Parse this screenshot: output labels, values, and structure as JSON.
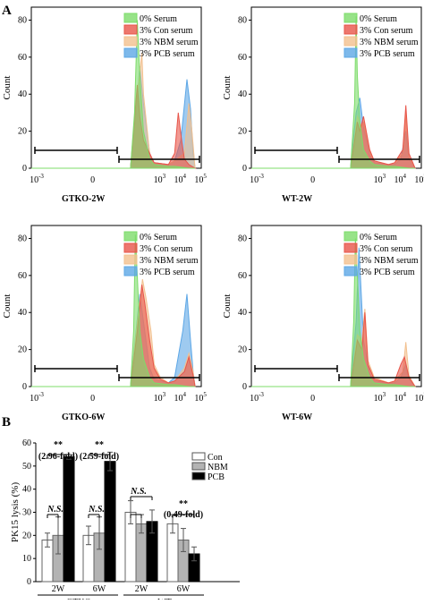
{
  "panel_a_label": "A",
  "panel_b_label": "B",
  "histograms": {
    "y_label": "Count",
    "y_ticks": [
      "0",
      "20",
      "40",
      "60",
      "80"
    ],
    "legend": [
      {
        "label": "0% Serum",
        "color": "#7ddc6a"
      },
      {
        "label": "3% Con serum",
        "color": "#e8554a"
      },
      {
        "label": "3% NBM serum",
        "color": "#f2c08f"
      },
      {
        "label": "3% PCB serum",
        "color": "#5da7e6"
      }
    ]
  },
  "bar_legend": [
    {
      "label": "Con",
      "color": "#ffffff"
    },
    {
      "label": "NBM",
      "color": "#b3b3b3"
    },
    {
      "label": "PCB",
      "color": "#000000"
    }
  ],
  "chart_data": [
    {
      "type": "area",
      "title": "GTKO-2W",
      "ylabel": "Count",
      "ylim": [
        0,
        87
      ],
      "x_scale": "log",
      "xlim": [
        0.001,
        200000
      ],
      "series": [
        {
          "name": "0% Serum",
          "x": [
            0.001,
            70,
            110,
            150,
            200,
            300,
            600,
            1000,
            5000,
            10000,
            50000,
            100000
          ],
          "values": [
            0,
            0,
            30,
            80,
            50,
            20,
            5,
            2,
            1,
            1,
            0,
            0
          ]
        },
        {
          "name": "3% Con serum",
          "x": [
            0.001,
            70,
            150,
            200,
            300,
            600,
            1000,
            5000,
            10000,
            15000,
            22000,
            30000,
            50000,
            100000
          ],
          "values": [
            0,
            0,
            45,
            28,
            15,
            8,
            3,
            2,
            8,
            30,
            15,
            5,
            2,
            0
          ]
        },
        {
          "name": "3% NBM serum",
          "x": [
            0.001,
            70,
            150,
            250,
            300,
            600,
            1000,
            5000,
            10000,
            30000,
            50000,
            70000,
            100000
          ],
          "values": [
            0,
            0,
            40,
            62,
            40,
            8,
            3,
            2,
            4,
            8,
            35,
            20,
            0
          ]
        },
        {
          "name": "3% PCB serum",
          "x": [
            0.001,
            70,
            130,
            200,
            300,
            600,
            1000,
            5000,
            10000,
            20000,
            40000,
            60000,
            80000,
            100000
          ],
          "values": [
            0,
            0,
            30,
            55,
            35,
            8,
            3,
            2,
            4,
            15,
            48,
            32,
            8,
            0
          ]
        }
      ]
    },
    {
      "type": "area",
      "title": "WT-2W",
      "ylabel": "Count",
      "ylim": [
        0,
        87
      ],
      "x_scale": "log",
      "xlim": [
        0.001,
        200000
      ],
      "series": [
        {
          "name": "0% Serum",
          "x": [
            0.001,
            70,
            110,
            130,
            150,
            200,
            300,
            600,
            1000,
            5000,
            10000,
            50000,
            100000
          ],
          "values": [
            0,
            0,
            35,
            82,
            50,
            25,
            10,
            4,
            2,
            1,
            1,
            0,
            0
          ]
        },
        {
          "name": "3% Con serum",
          "x": [
            0.001,
            70,
            150,
            200,
            300,
            600,
            1000,
            5000,
            10000,
            25000,
            35000,
            50000,
            100000
          ],
          "values": [
            0,
            0,
            25,
            20,
            28,
            10,
            4,
            2,
            3,
            10,
            34,
            8,
            0
          ]
        },
        {
          "name": "3% NBM serum",
          "x": [
            0.001,
            70,
            150,
            250,
            300,
            600,
            1000,
            5000,
            10000,
            25000,
            35000,
            50000,
            100000
          ],
          "values": [
            0,
            0,
            28,
            22,
            25,
            9,
            4,
            2,
            3,
            8,
            30,
            6,
            0
          ]
        },
        {
          "name": "3% PCB serum",
          "x": [
            0.001,
            70,
            130,
            200,
            300,
            600,
            1000,
            5000,
            10000,
            20000,
            35000,
            50000,
            100000
          ],
          "values": [
            0,
            0,
            30,
            38,
            22,
            7,
            3,
            2,
            2,
            5,
            20,
            5,
            0
          ]
        }
      ]
    },
    {
      "type": "area",
      "title": "GTKO-6W",
      "ylabel": "Count",
      "ylim": [
        0,
        87
      ],
      "x_scale": "log",
      "xlim": [
        0.001,
        200000
      ],
      "series": [
        {
          "name": "0% Serum",
          "x": [
            0.001,
            70,
            100,
            120,
            150,
            200,
            300,
            600,
            1000,
            5000,
            10000,
            50000,
            100000
          ],
          "values": [
            0,
            0,
            30,
            82,
            60,
            30,
            15,
            5,
            2,
            1,
            1,
            0,
            0
          ]
        },
        {
          "name": "3% Con serum",
          "x": [
            0.001,
            70,
            150,
            250,
            350,
            600,
            1000,
            2000,
            5000,
            10000,
            30000,
            50000,
            80000,
            100000
          ],
          "values": [
            0,
            0,
            30,
            55,
            45,
            25,
            10,
            4,
            2,
            3,
            8,
            16,
            6,
            0
          ]
        },
        {
          "name": "3% NBM serum",
          "x": [
            0.001,
            70,
            150,
            270,
            400,
            700,
            1000,
            2000,
            5000,
            10000,
            30000,
            50000,
            80000,
            100000
          ],
          "values": [
            0,
            0,
            35,
            58,
            48,
            30,
            12,
            5,
            2,
            3,
            10,
            18,
            8,
            0
          ]
        },
        {
          "name": "3% PCB serum",
          "x": [
            0.001,
            70,
            130,
            200,
            300,
            600,
            1000,
            5000,
            10000,
            25000,
            40000,
            60000,
            80000,
            100000
          ],
          "values": [
            0,
            0,
            30,
            50,
            35,
            10,
            4,
            2,
            5,
            30,
            50,
            25,
            8,
            0
          ]
        }
      ]
    },
    {
      "type": "area",
      "title": "WT-6W",
      "ylabel": "Count",
      "ylim": [
        0,
        87
      ],
      "x_scale": "log",
      "xlim": [
        0.001,
        200000
      ],
      "series": [
        {
          "name": "0% Serum",
          "x": [
            0.001,
            70,
            100,
            120,
            150,
            200,
            300,
            600,
            1000,
            5000,
            10000,
            50000,
            100000
          ],
          "values": [
            0,
            0,
            35,
            80,
            60,
            30,
            15,
            5,
            2,
            1,
            1,
            0,
            0
          ]
        },
        {
          "name": "3% Con serum",
          "x": [
            0.001,
            70,
            150,
            250,
            350,
            500,
            1000,
            5000,
            10000,
            20000,
            30000,
            50000,
            100000
          ],
          "values": [
            0,
            0,
            25,
            20,
            40,
            12,
            4,
            2,
            3,
            12,
            16,
            5,
            0
          ]
        },
        {
          "name": "3% NBM serum",
          "x": [
            0.001,
            70,
            150,
            250,
            350,
            500,
            1000,
            5000,
            10000,
            25000,
            35000,
            50000,
            100000
          ],
          "values": [
            0,
            0,
            28,
            25,
            42,
            14,
            5,
            2,
            3,
            8,
            24,
            6,
            0
          ]
        },
        {
          "name": "3% PCB serum",
          "x": [
            0.001,
            70,
            130,
            180,
            300,
            600,
            1000,
            5000,
            10000,
            20000,
            35000,
            50000,
            100000
          ],
          "values": [
            0,
            0,
            35,
            75,
            25,
            7,
            3,
            2,
            2,
            5,
            12,
            4,
            0
          ]
        }
      ]
    },
    {
      "type": "bar",
      "ylabel": "PK15 lysis (%)",
      "ylim": [
        0,
        60
      ],
      "y_ticks": [
        "0",
        "10",
        "20",
        "30",
        "40",
        "50",
        "60"
      ],
      "categories": [
        "2W",
        "6W",
        "2W",
        "6W"
      ],
      "groups": [
        "GTKO",
        "WT"
      ],
      "series": [
        {
          "name": "Con",
          "values": [
            18,
            20,
            30,
            25
          ],
          "errors": [
            3,
            4,
            5,
            4
          ]
        },
        {
          "name": "NBM",
          "values": [
            20,
            21,
            25,
            18
          ],
          "errors": [
            8,
            7,
            4,
            5
          ]
        },
        {
          "name": "PCB",
          "values": [
            54,
            52,
            26,
            12
          ],
          "errors": [
            1,
            4,
            5,
            3
          ]
        }
      ],
      "annotations": [
        {
          "text": "**"
        },
        {
          "text": "(2.96-fold)"
        },
        {
          "text": "**"
        },
        {
          "text": "(2.59-fold)"
        },
        {
          "text": "N.S."
        },
        {
          "text": "N.S."
        },
        {
          "text": "N.S."
        },
        {
          "text": "**"
        },
        {
          "text": "(0.49-fold)"
        }
      ]
    }
  ]
}
